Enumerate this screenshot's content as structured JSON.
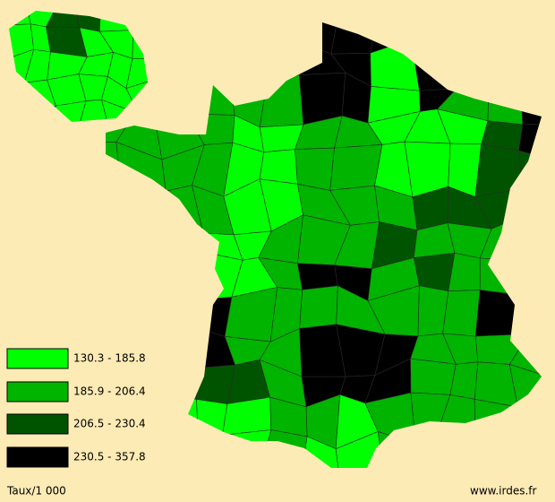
{
  "legend": {
    "items": [
      {
        "label": "130.3 - 185.8",
        "color": "#00ff00"
      },
      {
        "label": "185.9 - 206.4",
        "color": "#00b400"
      },
      {
        "label": "206.5 - 230.4",
        "color": "#005400"
      },
      {
        "label": "230.5 - 357.8",
        "color": "#000000"
      }
    ]
  },
  "footer": {
    "unit": "Taux/1 000",
    "source": "www.irdes.fr"
  }
}
